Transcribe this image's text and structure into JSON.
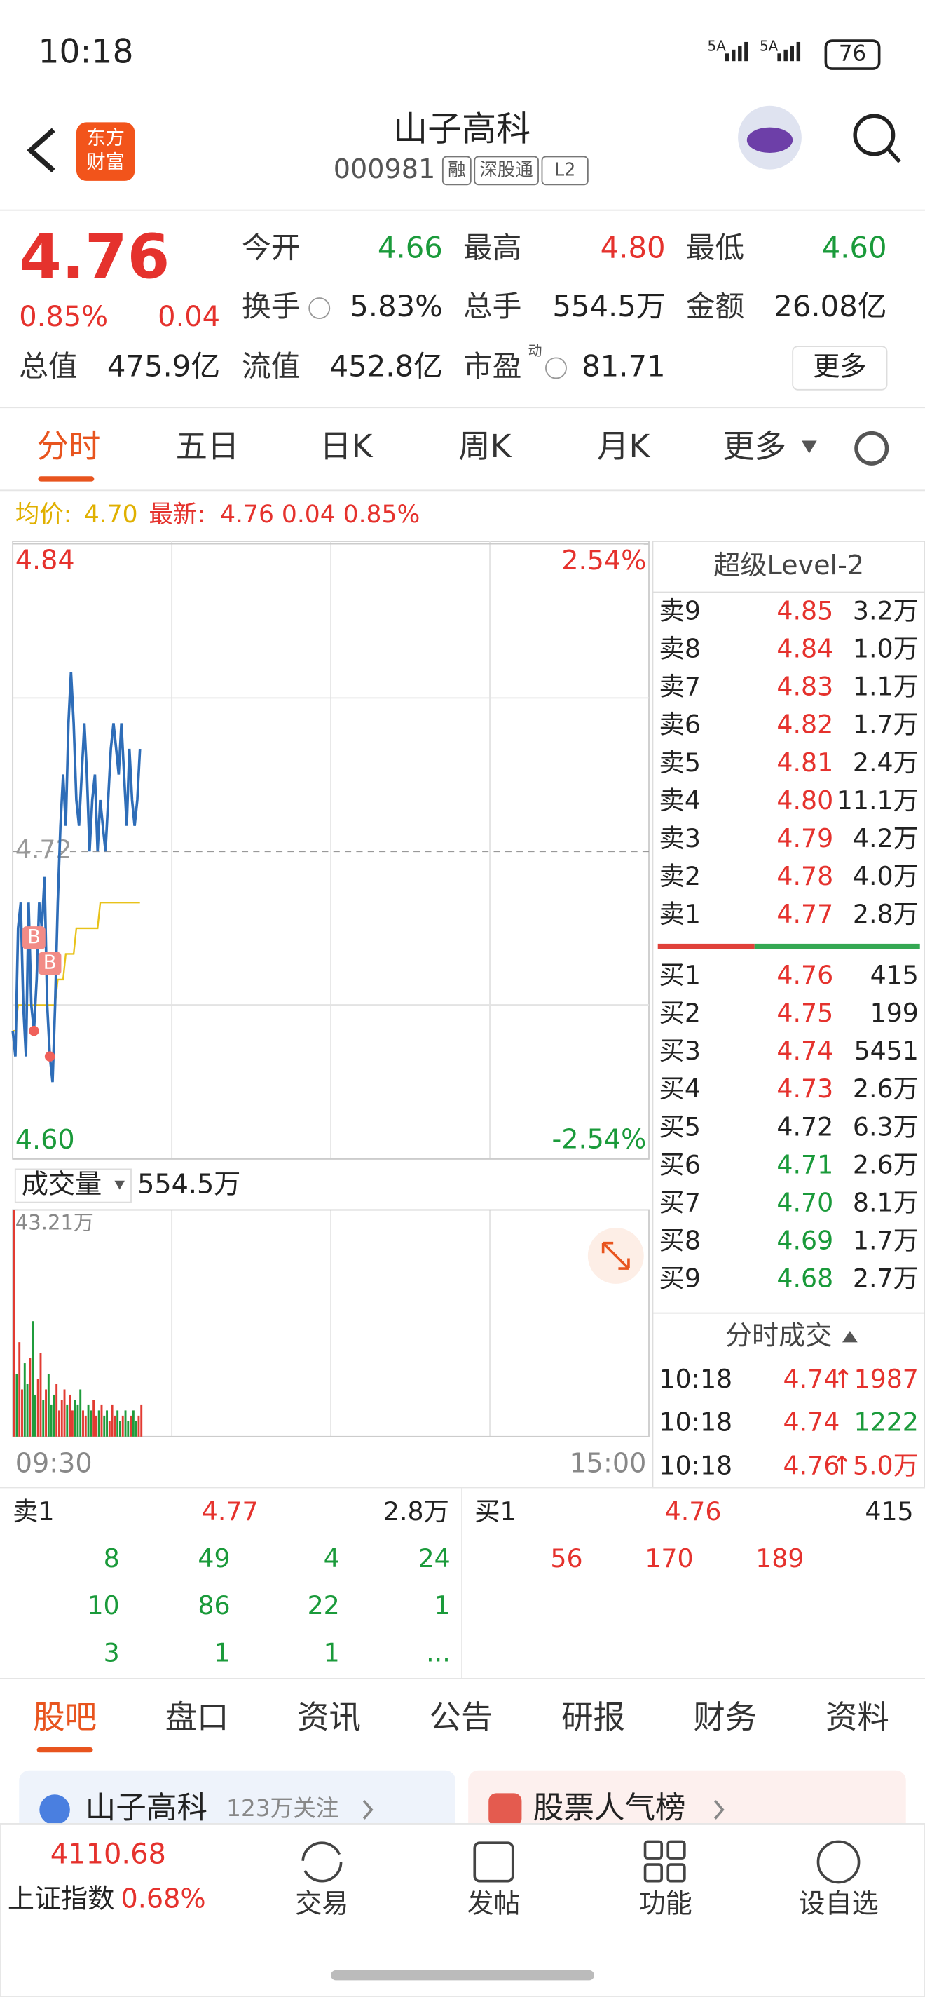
{
  "status_bar": {
    "time": "10:18",
    "signal_1": "5A",
    "signal_2": "5A",
    "battery": "76"
  },
  "header": {
    "logo": [
      "东方",
      "财富"
    ],
    "title": "山子高科",
    "code": "000981",
    "tags": [
      "融",
      "深股通",
      "L2"
    ]
  },
  "quote": {
    "price": "4.76",
    "change_pct": "0.85%",
    "change": "0.04",
    "stats": [
      {
        "label": "今开",
        "value": "4.66"
      },
      {
        "label": "最高",
        "value": "4.80"
      },
      {
        "label": "最低",
        "value": "4.60"
      },
      {
        "label": "换手",
        "value": "5.83%"
      },
      {
        "label": "总手",
        "value": "554.5万"
      },
      {
        "label": "金额",
        "value": "26.08亿"
      },
      {
        "label": "总值",
        "value": "475.9亿"
      },
      {
        "label": "流值",
        "value": "452.8亿"
      },
      {
        "label": "市盈",
        "sup": "动",
        "value": "81.71"
      }
    ],
    "more": "更多"
  },
  "chart_tabs": [
    "分时",
    "五日",
    "日K",
    "周K",
    "月K",
    "更多"
  ],
  "legend": {
    "avg_label": "均价:",
    "avg": "4.70",
    "latest_label": "最新:",
    "latest": "4.76 0.04 0.85%"
  },
  "chart": {
    "type": "line",
    "ylim": [
      4.6,
      4.84
    ],
    "yticks": [
      4.84,
      {
        "value": 4.6,
        "label": "4.60"
      }
    ],
    "ref": 4.72,
    "pct_ticks": [
      {
        "value": 2.54,
        "label": "2.54%"
      },
      {
        "value": -2.54,
        "label": "-2.54%"
      }
    ],
    "xlim": [
      0,
      240
    ],
    "xlabels": [
      "09:30",
      "15:00"
    ],
    "price": {
      "color": "#2e6db8",
      "values": [
        4.65,
        4.64,
        4.69,
        4.7,
        4.66,
        4.64,
        4.7,
        4.66,
        4.65,
        4.67,
        4.7,
        4.69,
        4.71,
        4.66,
        4.64,
        4.63,
        4.66,
        4.7,
        4.73,
        4.75,
        4.73,
        4.77,
        4.79,
        4.77,
        4.74,
        4.73,
        4.75,
        4.77,
        4.75,
        4.72,
        4.74,
        4.75,
        4.72,
        4.74,
        4.73,
        4.72,
        4.74,
        4.76,
        4.77,
        4.76,
        4.75,
        4.77,
        4.75,
        4.73,
        4.76,
        4.74,
        4.73,
        4.74,
        4.76
      ]
    },
    "avg": {
      "color": "#e8c21a",
      "values": [
        4.65,
        4.65,
        4.66,
        4.66,
        4.66,
        4.66,
        4.66,
        4.66,
        4.66,
        4.66,
        4.66,
        4.66,
        4.66,
        4.66,
        4.66,
        4.66,
        4.66,
        4.67,
        4.67,
        4.67,
        4.68,
        4.68,
        4.68,
        4.68,
        4.69,
        4.69,
        4.69,
        4.69,
        4.69,
        4.69,
        4.69,
        4.69,
        4.69,
        4.7,
        4.7,
        4.7,
        4.7,
        4.7,
        4.7,
        4.7,
        4.7,
        4.7,
        4.7,
        4.7,
        4.7,
        4.7,
        4.7,
        4.7,
        4.7
      ]
    },
    "trade_marks": [
      {
        "label": "B",
        "minute": 8,
        "price": 4.65
      },
      {
        "label": "B",
        "minute": 14,
        "price": 4.64
      }
    ],
    "volume": {
      "label": "成交量",
      "total": "554.5万",
      "ylim": [
        0,
        43.21
      ],
      "max_tick": {
        "value": 43.21,
        "label": "43.21万"
      },
      "values": [
        43.21,
        12,
        18,
        9,
        14,
        10,
        15,
        22,
        8,
        11,
        16,
        7,
        9,
        12,
        6,
        8,
        10,
        5,
        7,
        9,
        6,
        8,
        5,
        7,
        6,
        9,
        5,
        4,
        6,
        5,
        7,
        4,
        5,
        6,
        4,
        5,
        3,
        6,
        4,
        5,
        3,
        4,
        5,
        3,
        4,
        5,
        3,
        4,
        6
      ]
    }
  },
  "order_book": {
    "title": "超级Level-2",
    "asks": [
      {
        "label": "卖9",
        "price": "4.85",
        "volume": "3.2万"
      },
      {
        "label": "卖8",
        "price": "4.84",
        "volume": "1.0万"
      },
      {
        "label": "卖7",
        "price": "4.83",
        "volume": "1.1万"
      },
      {
        "label": "卖6",
        "price": "4.82",
        "volume": "1.7万"
      },
      {
        "label": "卖5",
        "price": "4.81",
        "volume": "2.4万"
      },
      {
        "label": "卖4",
        "price": "4.80",
        "volume": "11.1万"
      },
      {
        "label": "卖3",
        "price": "4.79",
        "volume": "4.2万"
      },
      {
        "label": "卖2",
        "price": "4.78",
        "volume": "4.0万"
      },
      {
        "label": "卖1",
        "price": "4.77",
        "volume": "2.8万"
      }
    ],
    "bids": [
      {
        "label": "买1",
        "price": "4.76",
        "volume": "415"
      },
      {
        "label": "买2",
        "price": "4.75",
        "volume": "199"
      },
      {
        "label": "买3",
        "price": "4.74",
        "volume": "5451"
      },
      {
        "label": "买4",
        "price": "4.73",
        "volume": "2.6万"
      },
      {
        "label": "买5",
        "price": "4.72",
        "volume": "6.3万"
      },
      {
        "label": "买6",
        "price": "4.71",
        "volume": "2.6万"
      },
      {
        "label": "买7",
        "price": "4.70",
        "volume": "8.1万"
      },
      {
        "label": "买8",
        "price": "4.69",
        "volume": "1.7万"
      },
      {
        "label": "买9",
        "price": "4.68",
        "volume": "2.7万"
      }
    ]
  },
  "trades": {
    "title": "分时成交",
    "rows": [
      {
        "time": "10:18",
        "price": "4.74",
        "volume": "↑1987",
        "color": "#e5322d"
      },
      {
        "time": "10:18",
        "price": "4.74",
        "volume": "1222",
        "color": "#1a9a3a"
      },
      {
        "time": "10:18",
        "price": "4.76",
        "volume": "↑5.0万",
        "color": "#e5322d"
      }
    ]
  },
  "queue": {
    "ask": {
      "label": "卖1",
      "price": "4.77",
      "volume": "2.8万",
      "orders": [
        "8",
        "49",
        "4",
        "24",
        "10",
        "86",
        "22",
        "1",
        "3",
        "1",
        "1",
        "..."
      ]
    },
    "bid": {
      "label": "买1",
      "price": "4.76",
      "volume": "415",
      "orders": [
        "56",
        "170",
        "189"
      ]
    }
  },
  "info_tabs": [
    "股吧",
    "盘口",
    "资讯",
    "公告",
    "研报",
    "财务",
    "资料"
  ],
  "cards": [
    {
      "title": "山子高科",
      "subtitle": "123万关注"
    },
    {
      "title": "股票人气榜"
    }
  ],
  "bottom_nav": {
    "index_value": "4110.68",
    "index_name": "上证指数",
    "index_change": "0.68%",
    "items": [
      "交易",
      "发帖",
      "功能",
      "设自选"
    ]
  }
}
